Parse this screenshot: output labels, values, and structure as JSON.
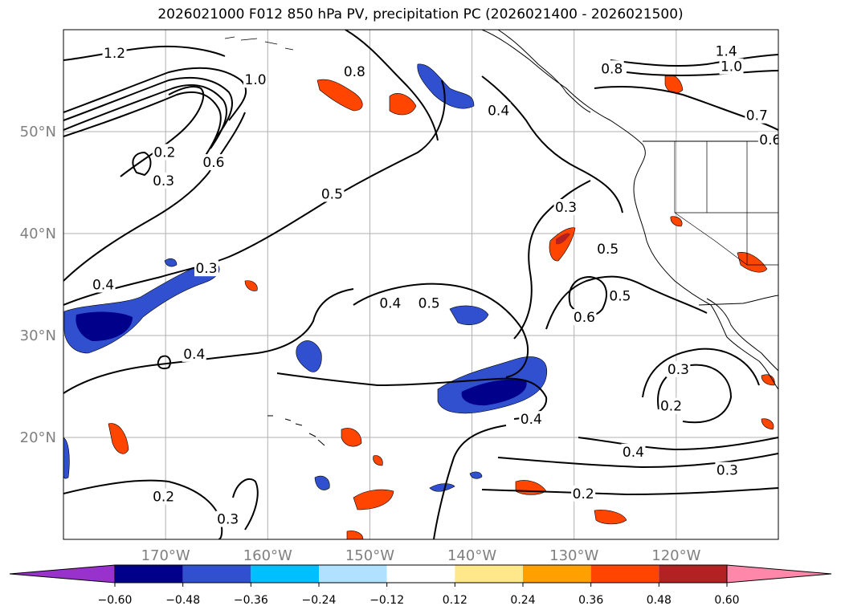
{
  "title": "2026021000 F012 850 hPa PV, precipitation PC (2026021400 - 2026021500)",
  "map": {
    "lon_range": [
      -180,
      -110
    ],
    "lat_range": [
      10,
      60
    ],
    "lon_ticks": [
      {
        "lon": -170,
        "label": "170°W"
      },
      {
        "lon": -160,
        "label": "160°W"
      },
      {
        "lon": -150,
        "label": "150°W"
      },
      {
        "lon": -140,
        "label": "140°W"
      },
      {
        "lon": -130,
        "label": "130°W"
      },
      {
        "lon": -120,
        "label": "120°W"
      }
    ],
    "lat_ticks": [
      {
        "lat": 20,
        "label": "20°N"
      },
      {
        "lat": 30,
        "label": "30°N"
      },
      {
        "lat": 40,
        "label": "40°N"
      },
      {
        "lat": 50,
        "label": "50°N"
      }
    ],
    "grid": true,
    "tick_label_color": "#808080",
    "contour_labels": [
      {
        "text": "1.2",
        "lon": -175,
        "lat": 57.7
      },
      {
        "text": "1.0",
        "lon": -161.2,
        "lat": 55.1
      },
      {
        "text": "0.8",
        "lon": -151.5,
        "lat": 55.9
      },
      {
        "text": "0.4",
        "lon": -137.4,
        "lat": 52.1
      },
      {
        "text": "0.8",
        "lon": -126.3,
        "lat": 56.2
      },
      {
        "text": "1.4",
        "lon": -115.1,
        "lat": 57.9
      },
      {
        "text": "1.0",
        "lon": -114.6,
        "lat": 56.4
      },
      {
        "text": "0.7",
        "lon": -112.1,
        "lat": 51.6
      },
      {
        "text": "0.6",
        "lon": -110.8,
        "lat": 49.2
      },
      {
        "text": "0.2",
        "lon": -170.1,
        "lat": 48.0
      },
      {
        "text": "0.6",
        "lon": -165.3,
        "lat": 47.0
      },
      {
        "text": "0.3",
        "lon": -170.2,
        "lat": 45.2
      },
      {
        "text": "0.5",
        "lon": -153.7,
        "lat": 43.9
      },
      {
        "text": "0.3",
        "lon": -166.0,
        "lat": 36.6
      },
      {
        "text": "0.4",
        "lon": -176.1,
        "lat": 35.0
      },
      {
        "text": "0.3",
        "lon": -130.8,
        "lat": 42.6
      },
      {
        "text": "0.5",
        "lon": -126.7,
        "lat": 38.5
      },
      {
        "text": "0.6",
        "lon": -129.0,
        "lat": 31.8
      },
      {
        "text": "0.5",
        "lon": -125.5,
        "lat": 33.9
      },
      {
        "text": "0.4",
        "lon": -148.0,
        "lat": 33.2
      },
      {
        "text": "0.5",
        "lon": -144.2,
        "lat": 33.2
      },
      {
        "text": "0.4",
        "lon": -167.2,
        "lat": 28.2
      },
      {
        "text": "0.4",
        "lon": -134.2,
        "lat": 21.8
      },
      {
        "text": "0.3",
        "lon": -119.8,
        "lat": 26.7
      },
      {
        "text": "0.2",
        "lon": -120.5,
        "lat": 23.1
      },
      {
        "text": "0.4",
        "lon": -124.2,
        "lat": 18.6
      },
      {
        "text": "0.3",
        "lon": -115.0,
        "lat": 16.8
      },
      {
        "text": "0.2",
        "lon": -129.1,
        "lat": 14.5
      },
      {
        "text": "0.2",
        "lon": -170.2,
        "lat": 14.2
      },
      {
        "text": "0.3",
        "lon": -163.9,
        "lat": 12.0
      }
    ]
  },
  "colorbar": {
    "tick_labels": [
      "−0.60",
      "−0.48",
      "−0.36",
      "−0.24",
      "−0.12",
      "0.12",
      "0.24",
      "0.36",
      "0.48",
      "0.60"
    ],
    "colors": [
      "#9932cc",
      "#00008b",
      "#3050d0",
      "#00bfff",
      "#b0e2ff",
      "#ffffff",
      "#ffe88a",
      "#ffa000",
      "#ff4500",
      "#b22222",
      "#ff88aa"
    ]
  }
}
